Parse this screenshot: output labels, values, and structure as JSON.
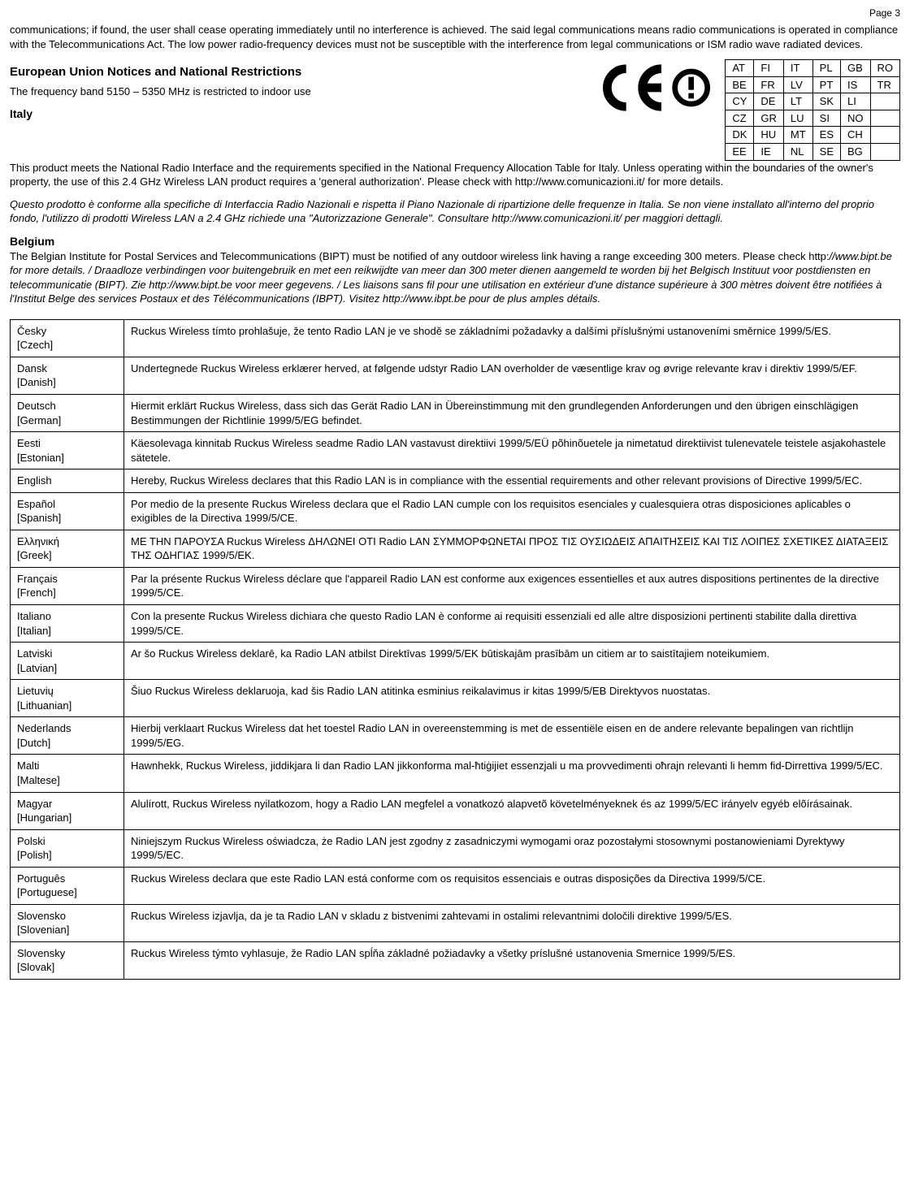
{
  "page_label": "Page 3",
  "intro_para": "communications; if found, the user shall cease operating immediately until no interference is achieved. The said legal communications means radio communications is operated in compliance with the Telecommunications Act. The low power radio-frequency devices must not be susceptible with the interference from legal communications or ISM radio wave radiated devices.",
  "eu_heading": "European Union Notices and National Restrictions",
  "eu_band": "The frequency band 5150 – 5350 MHz is restricted to indoor use",
  "italy_heading": "Italy",
  "italy_para1": "This product meets the National Radio Interface and the requirements specified in the National Frequency Allocation Table for Italy. Unless operating within the boundaries of the owner's property, the use of this 2.4 GHz Wireless LAN product requires a 'general authorization'. Please check with http://www.comunicazioni.it/ for more details.",
  "italy_para2": "Questo prodotto è conforme alla specifiche di Interfaccia Radio Nazionali e rispetta il Piano Nazionale di ripartizione delle frequenze in Italia. Se non viene installato all'interno del proprio fondo, l'utilizzo di prodotti Wireless LAN a 2.4 GHz richiede una \"Autorizzazione Generale\". Consultare http://www.comunicazioni.it/ per maggiori dettagli.",
  "belgium_heading": "Belgium",
  "belgium_para": "The Belgian Institute for Postal Services and Telecommunications (BIPT) must be notified of any outdoor wireless link having a range exceeding 300 meters. Please check http://www.bipt.be for more details. / Draadloze verbindingen voor buitengebruik en met een reikwijdte van meer dan 300 meter dienen aangemeld te worden bij het Belgisch Instituut voor postdiensten en telecommunicatie (BIPT). Zie http://www.bipt.be voor meer gegevens. / Les liaisons sans fil pour une utilisation en extérieur d'une distance supérieure à 300 mètres doivent être notifiées à l'Institut Belge des services Postaux et des Télécommunications (IBPT). Visitez http://www.ibpt.be pour de plus amples détails.",
  "country_table": [
    [
      "AT",
      "FI",
      "IT",
      "PL",
      "GB",
      "RO"
    ],
    [
      "BE",
      "FR",
      "LV",
      "PT",
      "IS",
      "TR"
    ],
    [
      "CY",
      "DE",
      "LT",
      "SK",
      "LI",
      ""
    ],
    [
      "CZ",
      "GR",
      "LU",
      "SI",
      "NO",
      ""
    ],
    [
      "DK",
      "HU",
      "MT",
      "ES",
      "CH",
      ""
    ],
    [
      "EE",
      "IE",
      "NL",
      "SE",
      "BG",
      ""
    ]
  ],
  "lang_table": [
    {
      "lang": "Česky",
      "lang_en": "[Czech]",
      "text": "Ruckus Wireless tímto prohlašuje, že tento Radio LAN je ve shodě se základními požadavky a dalšími příslušnými ustanoveními směrnice 1999/5/ES."
    },
    {
      "lang": "Dansk",
      "lang_en": "[Danish]",
      "text": "Undertegnede Ruckus Wireless erklærer herved, at følgende udstyr Radio LAN overholder de væsentlige krav og øvrige relevante krav i direktiv 1999/5/EF."
    },
    {
      "lang": "Deutsch",
      "lang_en": "[German]",
      "text": "Hiermit erklärt Ruckus Wireless, dass sich das Gerät Radio LAN in Übereinstimmung mit den grundlegenden Anforderungen und den übrigen einschlägigen Bestimmungen der Richtlinie 1999/5/EG befindet."
    },
    {
      "lang": "Eesti",
      "lang_en": "[Estonian]",
      "text": "Käesolevaga kinnitab Ruckus Wireless seadme Radio LAN vastavust direktiivi 1999/5/EÜ põhinõuetele ja nimetatud direktiivist tulenevatele teistele asjakohastele sätetele."
    },
    {
      "lang": "English",
      "lang_en": "",
      "text": "Hereby, Ruckus Wireless declares that this Radio LAN is in compliance with the essential requirements and other relevant provisions of Directive 1999/5/EC."
    },
    {
      "lang": "Español",
      "lang_en": "[Spanish]",
      "text": "Por medio de la presente Ruckus Wireless declara que el Radio LAN cumple con los requisitos esenciales y cualesquiera otras disposiciones aplicables o exigibles de la Directiva 1999/5/CE."
    },
    {
      "lang": "Ελληνική",
      "lang_en": "[Greek]",
      "text": "ΜΕ ΤΗΝ ΠΑΡΟΥΣΑ Ruckus Wireless ΔΗΛΩΝΕΙ ΟΤΙ Radio LAN ΣΥΜΜΟΡΦΩΝΕΤΑΙ ΠΡΟΣ ΤΙΣ ΟΥΣΙΩΔΕΙΣ ΑΠΑΙΤΗΣΕΙΣ ΚΑΙ ΤΙΣ ΛΟΙΠΕΣ ΣΧΕΤΙΚΕΣ ΔΙΑΤΑΞΕΙΣ ΤΗΣ ΟΔΗΓΙΑΣ 1999/5/ΕΚ."
    },
    {
      "lang": "Français",
      "lang_en": "[French]",
      "text": "Par la présente Ruckus Wireless déclare que l'appareil Radio LAN est conforme aux exigences essentielles et aux autres dispositions pertinentes de la directive 1999/5/CE."
    },
    {
      "lang": "Italiano",
      "lang_en": "[Italian]",
      "text": "Con la presente Ruckus Wireless dichiara che questo Radio LAN è conforme ai requisiti essenziali ed alle altre disposizioni pertinenti stabilite dalla direttiva 1999/5/CE."
    },
    {
      "lang": "Latviski",
      "lang_en": "[Latvian]",
      "text": "Ar šo Ruckus Wireless deklarē, ka Radio LAN atbilst Direktīvas 1999/5/EK būtiskajām prasībām un citiem ar to saistītajiem noteikumiem."
    },
    {
      "lang": "Lietuvių",
      "lang_en": "[Lithuanian]",
      "text": "Šiuo Ruckus Wireless deklaruoja, kad šis Radio LAN atitinka esminius reikalavimus ir kitas 1999/5/EB Direktyvos nuostatas."
    },
    {
      "lang": "Nederlands",
      "lang_en": "[Dutch]",
      "text": "Hierbij verklaart Ruckus Wireless dat het toestel Radio LAN in overeenstemming is met de essentiële eisen en de andere relevante bepalingen van richtlijn 1999/5/EG."
    },
    {
      "lang": "Malti",
      "lang_en": "[Maltese]",
      "text": "Hawnhekk, Ruckus Wireless, jiddikjara li dan Radio LAN jikkonforma mal-ħtiġijiet essenzjali u ma provvedimenti oħrajn relevanti li hemm fid-Dirrettiva 1999/5/EC."
    },
    {
      "lang": "Magyar",
      "lang_en": "[Hungarian]",
      "text": "Alulírott, Ruckus Wireless nyilatkozom, hogy a Radio LAN megfelel a vonatkozó alapvetõ követelményeknek és az 1999/5/EC irányelv egyéb elõírásainak."
    },
    {
      "lang": "Polski",
      "lang_en": "[Polish]",
      "text": "Niniejszym Ruckus Wireless oświadcza, że Radio LAN jest zgodny z zasadniczymi wymogami oraz pozostałymi stosownymi postanowieniami Dyrektywy 1999/5/EC."
    },
    {
      "lang": "Português",
      "lang_en": "[Portuguese]",
      "text": "Ruckus Wireless declara que este Radio LAN está conforme com os requisitos essenciais e outras disposições da Directiva 1999/5/CE."
    },
    {
      "lang": "Slovensko",
      "lang_en": "[Slovenian]",
      "text": "Ruckus Wireless izjavlja, da je ta Radio LAN v skladu z bistvenimi zahtevami in ostalimi relevantnimi določili direktive 1999/5/ES."
    },
    {
      "lang": "Slovensky",
      "lang_en": "[Slovak]",
      "text": "Ruckus Wireless týmto vyhlasuje, že Radio LAN spĺňa základné požiadavky a všetky príslušné ustanovenia Smernice 1999/5/ES."
    }
  ]
}
